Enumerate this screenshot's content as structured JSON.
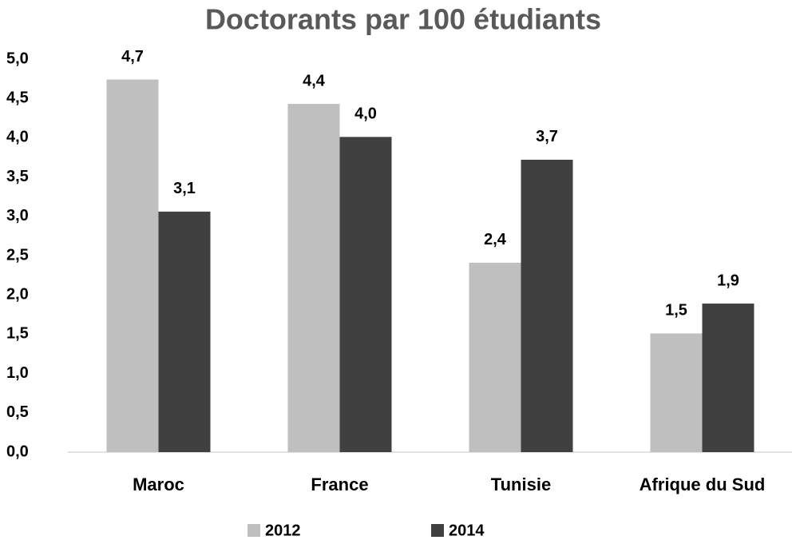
{
  "chart_data": {
    "type": "bar",
    "title": "Doctorants par 100 étudiants",
    "categories": [
      "Maroc",
      "France",
      "Tunisie",
      "Afrique du Sud"
    ],
    "series": [
      {
        "name": "2012",
        "color": "#bfbfbf",
        "values": [
          4.74,
          4.43,
          2.41,
          1.51
        ],
        "value_labels": [
          "4,7",
          "4,4",
          "2,4",
          "1,5"
        ]
      },
      {
        "name": "2014",
        "color": "#404040",
        "values": [
          3.06,
          4.01,
          3.72,
          1.89
        ],
        "value_labels": [
          "3,1",
          "4,0",
          "3,7",
          "1,9"
        ]
      }
    ],
    "ylim": [
      0,
      5
    ],
    "yticks": [
      {
        "value": 0,
        "label": "0,0"
      },
      {
        "value": 0.5,
        "label": "0,5"
      },
      {
        "value": 1,
        "label": "1,0"
      },
      {
        "value": 1.5,
        "label": "1,5"
      },
      {
        "value": 2,
        "label": "2,0"
      },
      {
        "value": 2.5,
        "label": "2,5"
      },
      {
        "value": 3,
        "label": "3,0"
      },
      {
        "value": 3.5,
        "label": "3,5"
      },
      {
        "value": 4,
        "label": "4,0"
      },
      {
        "value": 4.5,
        "label": "4,5"
      },
      {
        "value": 5,
        "label": "5,0"
      }
    ],
    "grid": false,
    "legend": "bottom"
  }
}
